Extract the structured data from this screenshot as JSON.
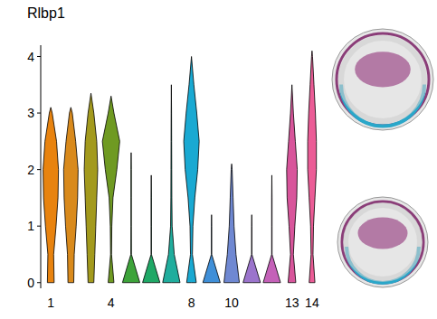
{
  "chart_data": {
    "type": "violin",
    "title": "Rlbp1",
    "categories": [
      "1",
      null,
      null,
      "4",
      null,
      null,
      null,
      "8",
      null,
      "10",
      null,
      null,
      "13",
      "14"
    ],
    "values": [
      3.1,
      3.1,
      3.35,
      3.3,
      2.3,
      1.9,
      3.5,
      4.0,
      1.2,
      2.1,
      1.2,
      1.9,
      3.5,
      4.1
    ],
    "density_levels": [
      0,
      0.5,
      1,
      1.5,
      2,
      2.5,
      3,
      3.5,
      4
    ],
    "density": [
      [
        0.35,
        0.3,
        0.55,
        0.75,
        0.8,
        0.6,
        0.15,
        0,
        0
      ],
      [
        0.3,
        0.35,
        0.55,
        0.7,
        0.75,
        0.5,
        0.15,
        0,
        0
      ],
      [
        0.3,
        0.4,
        0.5,
        0.6,
        0.7,
        0.6,
        0.3,
        0,
        0
      ],
      [
        0.3,
        0.05,
        0.08,
        0.2,
        0.6,
        0.9,
        0.3,
        0,
        0
      ],
      [
        0.9,
        0.03,
        0.02,
        0.02,
        0.02,
        0,
        0,
        0,
        0
      ],
      [
        0.9,
        0.02,
        0.02,
        0.02,
        0,
        0,
        0,
        0,
        0
      ],
      [
        0.9,
        0.3,
        0.08,
        0.05,
        0.04,
        0.03,
        0.02,
        0,
        0
      ],
      [
        0.5,
        0.1,
        0.15,
        0.35,
        0.65,
        0.8,
        0.55,
        0.25,
        0
      ],
      [
        0.9,
        0.02,
        0.02,
        0,
        0,
        0,
        0,
        0,
        0
      ],
      [
        0.8,
        0.45,
        0.25,
        0.15,
        0.05,
        0,
        0,
        0,
        0
      ],
      [
        0.9,
        0.02,
        0.02,
        0,
        0,
        0,
        0,
        0,
        0
      ],
      [
        0.9,
        0.02,
        0.02,
        0.02,
        0,
        0,
        0,
        0,
        0
      ],
      [
        0.4,
        0.15,
        0.3,
        0.5,
        0.55,
        0.35,
        0.15,
        0,
        0
      ],
      [
        0.3,
        0.1,
        0.15,
        0.3,
        0.45,
        0.45,
        0.35,
        0.2,
        0.05
      ]
    ],
    "colors": [
      "#e8830f",
      "#d98a1c",
      "#a39a1d",
      "#6f9a22",
      "#3da33a",
      "#1fa866",
      "#20ad9d",
      "#19a9d2",
      "#3f8fd8",
      "#6f88d2",
      "#9b74cc",
      "#c461b8",
      "#d8559b",
      "#eb5c96"
    ],
    "ylim": [
      -0.1,
      4.2
    ],
    "yticks": [
      0,
      1,
      2,
      3,
      4
    ],
    "grid": false
  }
}
